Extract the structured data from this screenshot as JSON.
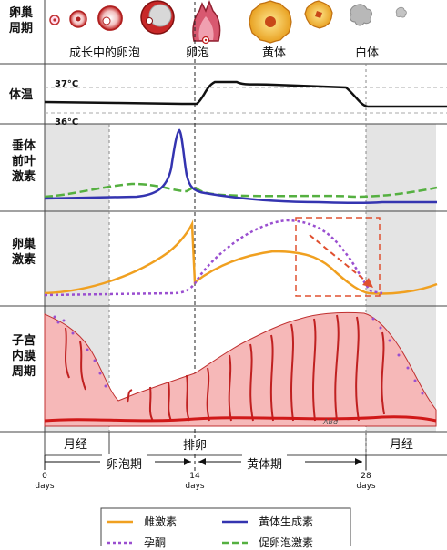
{
  "rows": {
    "ovary_cycle": "卵巢\n周期",
    "temperature": "体温",
    "pituitary": "垂体\n前叶\n激素",
    "ovarian_hormones": "卵巢\n激素",
    "endometrium": "子宫\n内膜\n周期"
  },
  "ovary_labels": {
    "follicle_growing": "成长中的卵泡",
    "ovulation": "卵泡",
    "corpus_luteum": "黄体",
    "corpus_albicans": "白体"
  },
  "temp_labels": {
    "high": "37°C",
    "low": "36°C"
  },
  "phases": {
    "menses_left": "月经",
    "ovulation": "排卵",
    "menses_right": "月经",
    "follicular": "卵泡期",
    "luteal": "黄体期"
  },
  "days": [
    {
      "num": "0",
      "unit": "days"
    },
    {
      "num": "14",
      "unit": "days"
    },
    {
      "num": "28",
      "unit": "days"
    }
  ],
  "signature": "ABd",
  "legend": {
    "estrogen": "雌激素",
    "lh": "黄体生成素",
    "progesterone": "孕酮",
    "fsh": "促卵泡激素"
  },
  "colors": {
    "estrogen": "#f0a020",
    "lh": "#3434b0",
    "progesterone": "#9a4fd0",
    "fsh": "#55b040",
    "menses_shade": "#e4e4e4",
    "endometrium_fill": "#f6b8b8",
    "vessel": "#d01818",
    "arrow": "#e05030"
  }
}
